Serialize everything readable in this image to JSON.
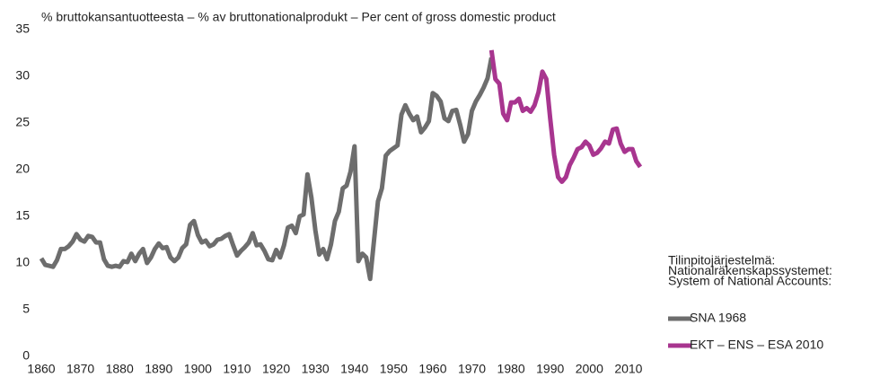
{
  "chart_data": {
    "type": "line",
    "title": "% bruttokansantuotteesta – % av bruttonationalprodukt – Per cent of gross domestic product",
    "legend_title": [
      "Tilinpitojärjestelmä:",
      "Nationalräkenskapssystemet:",
      "System of National Accounts:"
    ],
    "legend": "right",
    "xlim": [
      1860,
      2013
    ],
    "xticks": [
      1860,
      1870,
      1880,
      1890,
      1900,
      1910,
      1920,
      1930,
      1940,
      1950,
      1960,
      1970,
      1980,
      1990,
      2000,
      2010
    ],
    "ylim": [
      0,
      35
    ],
    "yticks": [
      0,
      5,
      10,
      15,
      20,
      25,
      30,
      35
    ],
    "series": [
      {
        "name": "SNA 1968",
        "color": "#6d6d6d",
        "x": [
          1860,
          1861,
          1862,
          1863,
          1864,
          1865,
          1866,
          1867,
          1868,
          1869,
          1870,
          1871,
          1872,
          1873,
          1874,
          1875,
          1876,
          1877,
          1878,
          1879,
          1880,
          1881,
          1882,
          1883,
          1884,
          1885,
          1886,
          1887,
          1888,
          1889,
          1890,
          1891,
          1892,
          1893,
          1894,
          1895,
          1896,
          1897,
          1898,
          1899,
          1900,
          1901,
          1902,
          1903,
          1904,
          1905,
          1906,
          1907,
          1908,
          1909,
          1910,
          1911,
          1912,
          1913,
          1914,
          1915,
          1916,
          1917,
          1918,
          1919,
          1920,
          1921,
          1922,
          1923,
          1924,
          1925,
          1926,
          1927,
          1928,
          1929,
          1930,
          1931,
          1932,
          1933,
          1934,
          1935,
          1936,
          1937,
          1938,
          1939,
          1940,
          1941,
          1942,
          1943,
          1944,
          1945,
          1946,
          1947,
          1948,
          1949,
          1950,
          1951,
          1952,
          1953,
          1954,
          1955,
          1956,
          1957,
          1958,
          1959,
          1960,
          1961,
          1962,
          1963,
          1964,
          1965,
          1966,
          1967,
          1968,
          1969,
          1970,
          1971,
          1972,
          1973,
          1974,
          1975
        ],
        "values": [
          10.5,
          9.8,
          9.7,
          9.6,
          10.3,
          11.5,
          11.5,
          11.8,
          12.3,
          13.1,
          12.5,
          12.3,
          12.9,
          12.8,
          12.2,
          12.2,
          10.4,
          9.7,
          9.6,
          9.7,
          9.6,
          10.2,
          10.1,
          11.0,
          10.2,
          11.0,
          11.5,
          10.0,
          10.6,
          11.5,
          12.1,
          11.6,
          11.7,
          10.6,
          10.2,
          10.6,
          11.6,
          12.0,
          14.1,
          14.5,
          13.0,
          12.2,
          12.4,
          11.8,
          12.0,
          12.5,
          12.6,
          12.9,
          13.1,
          11.9,
          10.8,
          11.3,
          11.7,
          12.2,
          13.2,
          11.9,
          12.0,
          11.3,
          10.4,
          10.3,
          11.4,
          10.6,
          11.9,
          13.8,
          14.0,
          13.2,
          15.0,
          15.2,
          19.5,
          17.0,
          13.5,
          10.9,
          11.5,
          10.4,
          12.0,
          14.5,
          15.5,
          18.0,
          18.3,
          19.8,
          22.5,
          10.2,
          11.0,
          10.6,
          8.3,
          12.5,
          16.6,
          18.0,
          21.5,
          22.0,
          22.3,
          22.6,
          25.9,
          26.9,
          26.0,
          25.3,
          25.7,
          24.0,
          24.5,
          25.2,
          28.2,
          27.9,
          27.3,
          25.5,
          25.2,
          26.3,
          26.4,
          24.8,
          23.0,
          23.8,
          26.3,
          27.3,
          28.0,
          28.8,
          29.8,
          32.0
        ]
      },
      {
        "name": "EKT – ENS – ESA 2010",
        "color": "#a8358f",
        "x": [
          1975,
          1976,
          1977,
          1978,
          1979,
          1980,
          1981,
          1982,
          1983,
          1984,
          1985,
          1986,
          1987,
          1988,
          1989,
          1990,
          1991,
          1992,
          1993,
          1994,
          1995,
          1996,
          1997,
          1998,
          1999,
          2000,
          2001,
          2002,
          2003,
          2004,
          2005,
          2006,
          2007,
          2008,
          2009,
          2010,
          2011,
          2012,
          2013
        ],
        "values": [
          32.8,
          29.7,
          29.2,
          26.0,
          25.3,
          27.2,
          27.2,
          27.6,
          26.3,
          26.6,
          26.2,
          26.9,
          28.3,
          30.5,
          29.7,
          25.5,
          21.6,
          19.2,
          18.7,
          19.2,
          20.5,
          21.3,
          22.2,
          22.4,
          23.0,
          22.6,
          21.6,
          21.8,
          22.3,
          23.0,
          22.8,
          24.3,
          24.4,
          22.8,
          21.9,
          22.2,
          22.2,
          20.9,
          20.3
        ]
      }
    ]
  }
}
